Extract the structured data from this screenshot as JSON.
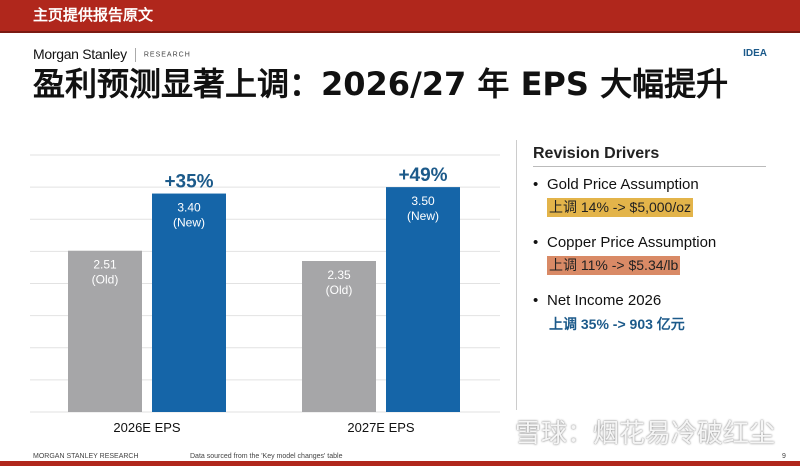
{
  "banner": "主页提供报告原文",
  "logo": {
    "name": "Morgan Stanley",
    "sub": "RESEARCH"
  },
  "tag": "IDEA",
  "title": "盈利预测显著上调：2026/27 年 EPS 大幅提升",
  "chart_data": {
    "type": "bar",
    "categories": [
      "2026E EPS",
      "2027E EPS"
    ],
    "series": [
      {
        "name": "Old",
        "values": [
          2.51,
          2.35
        ],
        "labels": [
          "2.51",
          "2.35"
        ],
        "color": "#a6a6a8"
      },
      {
        "name": "New",
        "values": [
          3.4,
          3.5
        ],
        "labels": [
          "3.40",
          "3.50"
        ],
        "color": "#1565a8"
      }
    ],
    "series_tags": [
      "(Old)",
      "(New)"
    ],
    "annotations": [
      "+35%",
      "+49%"
    ],
    "ylim": [
      0,
      4
    ],
    "grid": true
  },
  "drivers": {
    "title": "Revision Drivers",
    "items": [
      {
        "label": "Gold Price Assumption",
        "detail": "上调 14% -> $5,000/oz",
        "color": "#e3b44a"
      },
      {
        "label": "Copper Price Assumption",
        "detail": "上调 11% -> $5.34/lb",
        "color": "#d98a66"
      },
      {
        "label": "Net Income 2026",
        "detail": "上调 35% -> 903 亿元",
        "color": "#1c5a8a"
      }
    ]
  },
  "footer": {
    "left": "MORGAN STANLEY RESEARCH",
    "source": "Data sourced from the 'Key model changes' table",
    "page": "9"
  },
  "watermark": "雪球：烟花易冷破红尘"
}
